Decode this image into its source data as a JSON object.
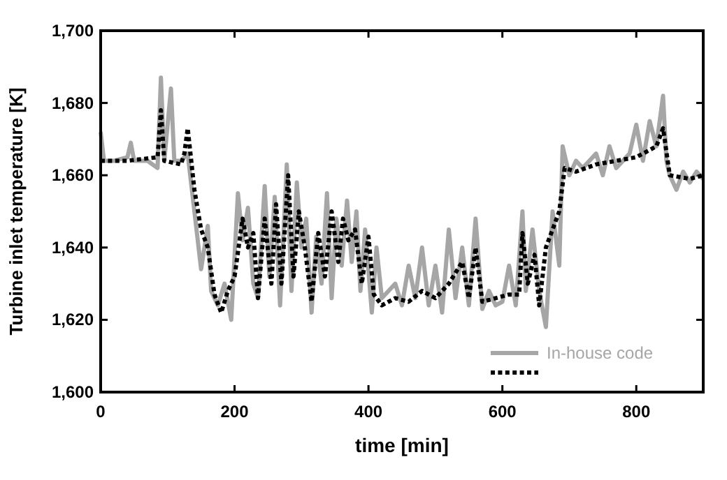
{
  "chart_data": {
    "type": "line",
    "xlabel": "time [min]",
    "ylabel": "Turbine inlet temperature [K]",
    "xlim": [
      0,
      900
    ],
    "ylim": [
      1600,
      1700
    ],
    "xticks": [
      0,
      200,
      400,
      600,
      800
    ],
    "yticks": [
      {
        "value": 1600,
        "label": "1,600"
      },
      {
        "value": 1620,
        "label": "1,620"
      },
      {
        "value": 1640,
        "label": "1,640"
      },
      {
        "value": 1660,
        "label": "1,660"
      },
      {
        "value": 1680,
        "label": "1,680"
      },
      {
        "value": 1700,
        "label": "1,700"
      }
    ],
    "grid": false,
    "legend": "bottom right",
    "series": [
      {
        "name": "In-house code",
        "color": "#a6a6a6",
        "line_style": "solid",
        "x": [
          0,
          5,
          20,
          40,
          45,
          50,
          70,
          85,
          90,
          95,
          105,
          110,
          120,
          130,
          140,
          150,
          160,
          165,
          175,
          185,
          195,
          205,
          212,
          220,
          228,
          235,
          245,
          252,
          260,
          268,
          278,
          285,
          293,
          300,
          307,
          315,
          322,
          330,
          338,
          345,
          352,
          360,
          368,
          375,
          382,
          388,
          395,
          405,
          412,
          420,
          430,
          440,
          450,
          460,
          470,
          480,
          490,
          500,
          510,
          520,
          530,
          540,
          550,
          560,
          570,
          580,
          590,
          600,
          610,
          620,
          630,
          635,
          645,
          655,
          665,
          675,
          685,
          690,
          700,
          710,
          720,
          740,
          750,
          760,
          770,
          790,
          800,
          810,
          820,
          830,
          840,
          845,
          850,
          860,
          870,
          880,
          890,
          900
        ],
        "values": [
          1672,
          1664,
          1664,
          1665,
          1669,
          1664,
          1664,
          1662,
          1687,
          1664,
          1684,
          1664,
          1664,
          1666,
          1650,
          1634,
          1646,
          1628,
          1624,
          1630,
          1620,
          1655,
          1642,
          1651,
          1630,
          1626,
          1657,
          1632,
          1654,
          1624,
          1663,
          1628,
          1658,
          1640,
          1648,
          1622,
          1643,
          1630,
          1655,
          1626,
          1648,
          1635,
          1653,
          1636,
          1650,
          1628,
          1645,
          1622,
          1640,
          1626,
          1628,
          1630,
          1624,
          1635,
          1626,
          1640,
          1624,
          1635,
          1622,
          1645,
          1626,
          1640,
          1624,
          1648,
          1623,
          1628,
          1624,
          1625,
          1635,
          1624,
          1650,
          1628,
          1645,
          1628,
          1618,
          1650,
          1635,
          1668,
          1660,
          1664,
          1662,
          1666,
          1660,
          1668,
          1662,
          1666,
          1674,
          1664,
          1675,
          1668,
          1682,
          1664,
          1660,
          1656,
          1661,
          1658,
          1661,
          1659
        ]
      },
      {
        "color": "#000000",
        "line_style": "dotted",
        "x": [
          0,
          40,
          85,
          90,
          95,
          120,
          125,
          130,
          140,
          150,
          160,
          170,
          180,
          190,
          200,
          212,
          220,
          228,
          235,
          245,
          255,
          262,
          270,
          280,
          288,
          296,
          305,
          315,
          325,
          335,
          345,
          355,
          362,
          370,
          380,
          390,
          400,
          408,
          420,
          440,
          460,
          480,
          500,
          520,
          540,
          550,
          560,
          570,
          590,
          610,
          625,
          630,
          638,
          648,
          655,
          665,
          675,
          685,
          693,
          710,
          740,
          770,
          800,
          830,
          840,
          850,
          880,
          900
        ],
        "values": [
          1664,
          1664,
          1665,
          1678,
          1664,
          1663,
          1666,
          1673,
          1656,
          1645,
          1640,
          1627,
          1622,
          1628,
          1632,
          1648,
          1640,
          1644,
          1626,
          1648,
          1630,
          1652,
          1630,
          1660,
          1632,
          1650,
          1640,
          1625,
          1644,
          1632,
          1650,
          1636,
          1648,
          1642,
          1645,
          1630,
          1643,
          1627,
          1624,
          1626,
          1625,
          1628,
          1626,
          1630,
          1636,
          1626,
          1640,
          1625,
          1626,
          1627,
          1627,
          1644,
          1630,
          1638,
          1624,
          1640,
          1645,
          1650,
          1662,
          1661,
          1663,
          1664,
          1665,
          1668,
          1673,
          1660,
          1659,
          1660
        ]
      }
    ]
  }
}
